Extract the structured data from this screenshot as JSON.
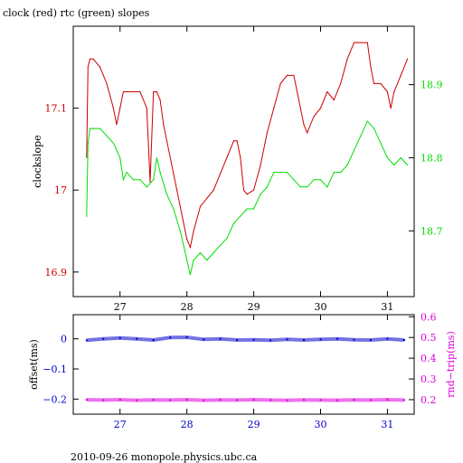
{
  "title": "clock (red) rtc (green) slopes",
  "footer": "2010-09-26 monopole.physics.ubc.ca",
  "colors": {
    "red": "#cc0000",
    "green": "#00dd00",
    "blue": "#0000cc",
    "magenta": "#dd00dd",
    "frame": "#000000"
  },
  "chart_data": [
    {
      "type": "line",
      "xlim": [
        26.3,
        31.4
      ],
      "xticks": [
        27,
        28,
        29,
        30,
        31
      ],
      "xtick_labels": [
        "27",
        "28",
        "29",
        "30",
        "31"
      ],
      "grid": false,
      "left_axis": {
        "label": "clockslope",
        "ylim": [
          16.87,
          17.2
        ],
        "ticks": [
          16.9,
          17,
          17.1
        ],
        "tick_labels": [
          "16.9",
          "17",
          "17.1"
        ],
        "color": "#cc0000"
      },
      "right_axis": {
        "label": "",
        "ylim": [
          18.61,
          18.98
        ],
        "ticks": [
          18.7,
          18.8,
          18.9
        ],
        "tick_labels": [
          "18.7",
          "18.8",
          "18.9"
        ],
        "color": "#00dd00"
      },
      "series": [
        {
          "axis": "left",
          "color": "#cc0000",
          "x": [
            26.5,
            26.52,
            26.55,
            26.6,
            26.7,
            26.8,
            26.9,
            26.95,
            27.0,
            27.05,
            27.1,
            27.2,
            27.3,
            27.4,
            27.45,
            27.5,
            27.55,
            27.6,
            27.65,
            27.7,
            27.8,
            27.85,
            27.9,
            27.95,
            28.0,
            28.05,
            28.1,
            28.2,
            28.3,
            28.4,
            28.5,
            28.6,
            28.7,
            28.75,
            28.8,
            28.85,
            28.9,
            29.0,
            29.1,
            29.2,
            29.3,
            29.4,
            29.5,
            29.6,
            29.7,
            29.75,
            29.8,
            29.9,
            30.0,
            30.1,
            30.2,
            30.3,
            30.4,
            30.5,
            30.55,
            30.6,
            30.7,
            30.75,
            30.8,
            30.9,
            31.0,
            31.05,
            31.1,
            31.2,
            31.3
          ],
          "y": [
            17.04,
            17.15,
            17.16,
            17.16,
            17.15,
            17.13,
            17.1,
            17.08,
            17.1,
            17.12,
            17.12,
            17.12,
            17.12,
            17.1,
            17.01,
            17.12,
            17.12,
            17.11,
            17.08,
            17.06,
            17.02,
            17.0,
            16.98,
            16.96,
            16.94,
            16.93,
            16.95,
            16.98,
            16.99,
            17.0,
            17.02,
            17.04,
            17.06,
            17.06,
            17.04,
            17.0,
            16.995,
            17.0,
            17.03,
            17.07,
            17.1,
            17.13,
            17.14,
            17.14,
            17.1,
            17.08,
            17.07,
            17.09,
            17.1,
            17.12,
            17.11,
            17.13,
            17.16,
            17.18,
            17.18,
            17.18,
            17.18,
            17.15,
            17.13,
            17.13,
            17.12,
            17.1,
            17.12,
            17.14,
            17.16
          ]
        },
        {
          "axis": "right",
          "color": "#00dd00",
          "x": [
            26.5,
            26.52,
            26.55,
            26.6,
            26.7,
            26.8,
            26.9,
            27.0,
            27.05,
            27.1,
            27.2,
            27.3,
            27.4,
            27.5,
            27.55,
            27.6,
            27.7,
            27.8,
            27.9,
            28.0,
            28.05,
            28.1,
            28.2,
            28.3,
            28.4,
            28.5,
            28.6,
            28.7,
            28.8,
            28.9,
            29.0,
            29.1,
            29.2,
            29.3,
            29.4,
            29.5,
            29.6,
            29.7,
            29.8,
            29.9,
            30.0,
            30.1,
            30.2,
            30.3,
            30.4,
            30.5,
            30.6,
            30.7,
            30.8,
            30.9,
            31.0,
            31.1,
            31.2,
            31.3
          ],
          "y": [
            18.72,
            18.82,
            18.84,
            18.84,
            18.84,
            18.83,
            18.82,
            18.8,
            18.77,
            18.78,
            18.77,
            18.77,
            18.76,
            18.77,
            18.8,
            18.78,
            18.75,
            18.73,
            18.7,
            18.66,
            18.64,
            18.66,
            18.67,
            18.66,
            18.67,
            18.68,
            18.69,
            18.71,
            18.72,
            18.73,
            18.73,
            18.75,
            18.76,
            18.78,
            18.78,
            18.78,
            18.77,
            18.76,
            18.76,
            18.77,
            18.77,
            18.76,
            18.78,
            18.78,
            18.79,
            18.81,
            18.83,
            18.85,
            18.84,
            18.82,
            18.8,
            18.79,
            18.8,
            18.79
          ]
        }
      ]
    },
    {
      "type": "scatter",
      "xlim": [
        26.3,
        31.4
      ],
      "xticks": [
        27,
        28,
        29,
        30,
        31
      ],
      "xtick_labels": [
        "27",
        "28",
        "29",
        "30",
        "31"
      ],
      "grid": false,
      "left_axis": {
        "label": "offset(ms)",
        "ylim": [
          -0.25,
          0.08
        ],
        "ticks": [
          0,
          -0.1,
          -0.2
        ],
        "tick_labels": [
          "0",
          "−0.1",
          "−0.2"
        ],
        "color": "#0000cc"
      },
      "right_axis": {
        "label": "rnd−trip(ms)",
        "ylim": [
          0.13,
          0.61
        ],
        "ticks": [
          0.2,
          0.3,
          0.4,
          0.5,
          0.6
        ],
        "tick_labels": [
          "0.2",
          "0.3",
          "0.4",
          "0.5",
          "0.6"
        ],
        "color": "#dd00dd"
      },
      "series": [
        {
          "axis": "left",
          "color": "#0000cc",
          "x": [
            26.5,
            26.75,
            27.0,
            27.25,
            27.5,
            27.75,
            28.0,
            28.25,
            28.5,
            28.75,
            29.0,
            29.25,
            29.5,
            29.75,
            30.0,
            30.25,
            30.5,
            30.75,
            31.0,
            31.25
          ],
          "y": [
            -0.005,
            0.0,
            0.003,
            0.0,
            -0.004,
            0.004,
            0.005,
            -0.002,
            0.0,
            -0.004,
            -0.003,
            -0.005,
            -0.002,
            -0.004,
            -0.002,
            0.0,
            -0.003,
            -0.004,
            0.0,
            -0.004
          ]
        },
        {
          "axis": "right",
          "color": "#dd00dd",
          "x": [
            26.5,
            26.75,
            27.0,
            27.25,
            27.5,
            27.75,
            28.0,
            28.25,
            28.5,
            28.75,
            29.0,
            29.25,
            29.5,
            29.75,
            30.0,
            30.25,
            30.5,
            30.75,
            31.0,
            31.25
          ],
          "y": [
            0.2,
            0.198,
            0.2,
            0.197,
            0.199,
            0.198,
            0.2,
            0.197,
            0.199,
            0.198,
            0.2,
            0.198,
            0.197,
            0.199,
            0.198,
            0.197,
            0.199,
            0.198,
            0.2,
            0.198
          ]
        }
      ]
    }
  ]
}
